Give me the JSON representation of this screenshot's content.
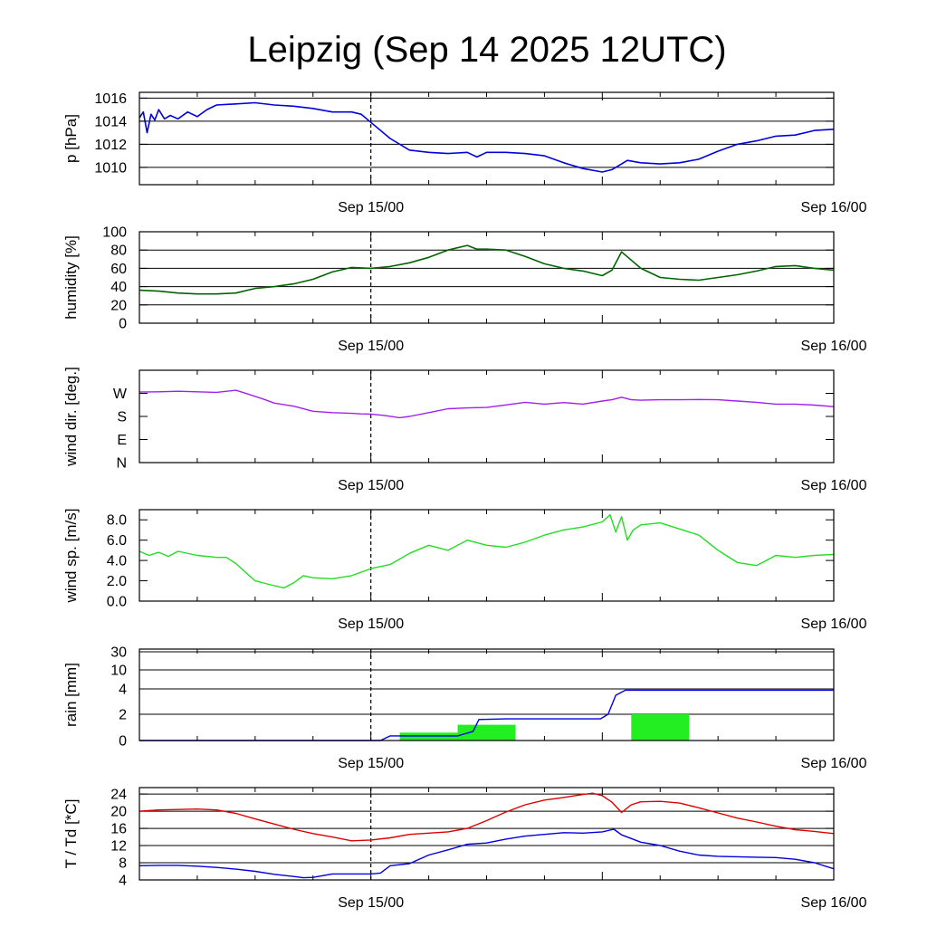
{
  "title": "Leipzig (Sep 14 2025 12UTC)",
  "colors": {
    "pressure": "#0000dd",
    "humidity": "#006400",
    "wind_dir": "#a020f0",
    "wind_speed": "#22dd22",
    "rain_bar": "#22ee22",
    "rain_cum": "#0000dd",
    "temperature": "#dd0000",
    "dewpoint": "#0000dd"
  },
  "chart_data": [
    {
      "id": "pressure",
      "type": "line",
      "ylabel": "p [hPa]",
      "x_ticks": [
        "Sep 15/00",
        "Sep 16/00"
      ],
      "x_range_hours": [
        0,
        36
      ],
      "ylim": [
        1008.5,
        1016.5
      ],
      "y_ticks": [
        "1010",
        "1012",
        "1014",
        "1016"
      ],
      "grid": true,
      "series": [
        {
          "name": "pressure",
          "x": [
            0,
            0.2,
            0.4,
            0.6,
            0.8,
            1,
            1.3,
            1.6,
            2,
            2.5,
            3,
            3.5,
            4,
            5,
            6,
            7,
            8,
            9,
            10,
            11,
            11.5,
            12,
            13,
            14,
            15,
            16,
            17,
            17.5,
            18,
            19,
            20,
            21,
            22,
            23,
            24,
            24.5,
            25,
            25.3,
            26,
            27,
            28,
            29,
            30,
            31,
            32,
            33,
            34,
            35,
            36
          ],
          "values": [
            1014.3,
            1014.8,
            1013.0,
            1014.6,
            1014.1,
            1015.0,
            1014.2,
            1014.5,
            1014.2,
            1014.8,
            1014.4,
            1015.0,
            1015.4,
            1015.5,
            1015.6,
            1015.4,
            1015.3,
            1015.1,
            1014.8,
            1014.8,
            1014.6,
            1013.9,
            1012.5,
            1011.5,
            1011.3,
            1011.2,
            1011.3,
            1010.9,
            1011.3,
            1011.3,
            1011.2,
            1011.0,
            1010.4,
            1009.9,
            1009.6,
            1009.8,
            1010.3,
            1010.6,
            1010.4,
            1010.3,
            1010.4,
            1010.7,
            1011.4,
            1012.0,
            1012.3,
            1012.7,
            1012.8,
            1013.2,
            1013.3
          ]
        }
      ]
    },
    {
      "id": "humidity",
      "type": "line",
      "ylabel": "humidity [%]",
      "x_ticks": [
        "Sep 15/00",
        "Sep 16/00"
      ],
      "x_range_hours": [
        0,
        36
      ],
      "ylim": [
        0,
        100
      ],
      "y_ticks": [
        "0",
        "20",
        "40",
        "60",
        "80",
        "100"
      ],
      "grid": true,
      "series": [
        {
          "name": "humidity",
          "x": [
            0,
            1,
            2,
            3,
            4,
            5,
            6,
            7,
            8,
            9,
            10,
            11,
            12,
            13,
            14,
            15,
            16,
            17,
            17.5,
            18,
            19,
            20,
            21,
            22,
            23,
            24,
            24.5,
            25,
            26,
            27,
            28,
            29,
            30,
            31,
            32,
            33,
            34,
            35,
            36
          ],
          "values": [
            36,
            35,
            33,
            32,
            32,
            33,
            38,
            40,
            43,
            48,
            56,
            61,
            60,
            62,
            66,
            72,
            80,
            85,
            81,
            81,
            80,
            73,
            65,
            60,
            57,
            52,
            58,
            78,
            60,
            50,
            48,
            47,
            50,
            53,
            57,
            62,
            63,
            60,
            58
          ]
        }
      ]
    },
    {
      "id": "wind_dir",
      "type": "line",
      "ylabel": "wind dir. [deg.]",
      "x_ticks": [
        "Sep 15/00",
        "Sep 16/00"
      ],
      "x_range_hours": [
        0,
        36
      ],
      "ylim": [
        0,
        360
      ],
      "y_ticks": [
        "N",
        "E",
        "S",
        "W"
      ],
      "grid": false,
      "series": [
        {
          "name": "wind direction",
          "x": [
            0,
            1,
            2,
            3,
            4,
            5,
            5.6,
            6.4,
            7,
            8,
            9,
            10,
            11,
            11.5,
            12,
            12.7,
            13.5,
            14,
            15,
            16,
            17,
            18,
            19,
            20,
            21,
            22,
            23,
            24,
            24.5,
            25,
            25.5,
            26,
            27,
            28,
            29,
            30,
            31,
            32,
            33,
            34,
            35,
            36
          ],
          "values": [
            275,
            276,
            278,
            276,
            274,
            282,
            268,
            248,
            232,
            220,
            200,
            195,
            192,
            190,
            189,
            184,
            175,
            180,
            195,
            210,
            213,
            215,
            225,
            235,
            228,
            234,
            228,
            240,
            245,
            255,
            245,
            243,
            245,
            245,
            246,
            245,
            240,
            235,
            228,
            228,
            224,
            218
          ]
        }
      ]
    },
    {
      "id": "wind_speed",
      "type": "line",
      "ylabel": "wind sp. [m/s]",
      "x_ticks": [
        "Sep 15/00",
        "Sep 16/00"
      ],
      "x_range_hours": [
        0,
        36
      ],
      "ylim": [
        0,
        9
      ],
      "y_ticks": [
        "0.0",
        "2.0",
        "4.0",
        "6.0",
        "8.0"
      ],
      "grid": false,
      "series": [
        {
          "name": "wind speed",
          "x": [
            0,
            0.5,
            1,
            1.5,
            2,
            3,
            4,
            4.5,
            5,
            6,
            6.8,
            7.5,
            8,
            8.5,
            9,
            10,
            11,
            12,
            13,
            14,
            15,
            16,
            17,
            18,
            19,
            20,
            21,
            22,
            23,
            24,
            24.4,
            24.7,
            25,
            25.3,
            25.6,
            26,
            27,
            28,
            29,
            30,
            31,
            32,
            33,
            34,
            35,
            36
          ],
          "values": [
            4.9,
            4.5,
            4.8,
            4.4,
            4.9,
            4.5,
            4.3,
            4.3,
            3.7,
            2.0,
            1.6,
            1.3,
            1.8,
            2.5,
            2.3,
            2.2,
            2.5,
            3.2,
            3.6,
            4.7,
            5.5,
            5.0,
            6.0,
            5.5,
            5.3,
            5.8,
            6.5,
            7.0,
            7.3,
            7.8,
            8.5,
            6.8,
            8.3,
            6.0,
            7.0,
            7.5,
            7.7,
            7.1,
            6.5,
            5.0,
            3.8,
            3.5,
            4.5,
            4.3,
            4.5,
            4.6
          ]
        }
      ]
    },
    {
      "id": "rain",
      "type": "bar",
      "ylabel": "rain [mm]",
      "x_ticks": [
        "Sep 15/00",
        "Sep 16/00"
      ],
      "x_range_hours": [
        0,
        36
      ],
      "ylim": [
        0,
        30
      ],
      "y_ticks": [
        "0",
        "2",
        "4",
        "10",
        "30"
      ],
      "grid": true,
      "bars": [
        {
          "x0": 13.5,
          "x1": 16.5,
          "value": 0.6
        },
        {
          "x0": 16.5,
          "x1": 19.5,
          "value": 1.2
        },
        {
          "x0": 25.5,
          "x1": 28.5,
          "value": 2.0
        }
      ],
      "series": [
        {
          "name": "cumulative rain",
          "x": [
            0,
            12.5,
            13,
            15.5,
            16.5,
            17.3,
            17.6,
            19,
            21,
            23,
            23.9,
            24.3,
            24.7,
            25.2,
            26,
            30,
            36
          ],
          "values": [
            0,
            0,
            0.35,
            0.35,
            0.35,
            0.7,
            1.6,
            1.65,
            1.65,
            1.65,
            1.65,
            2.0,
            3.5,
            3.9,
            3.9,
            3.9,
            3.9
          ]
        }
      ]
    },
    {
      "id": "temperature",
      "type": "line",
      "ylabel": "T / Td [*C]",
      "x_ticks": [
        "Sep 15/00",
        "Sep 16/00"
      ],
      "x_range_hours": [
        0,
        36
      ],
      "ylim": [
        4,
        25.5
      ],
      "y_ticks": [
        "4",
        "8",
        "12",
        "16",
        "20",
        "24"
      ],
      "grid": true,
      "series": [
        {
          "name": "T",
          "x": [
            0,
            1,
            2,
            3,
            4,
            5,
            6,
            7,
            8,
            9,
            10,
            11,
            12,
            13,
            14,
            15,
            16,
            17,
            18,
            19,
            20,
            21,
            22,
            23,
            23.5,
            24,
            24.5,
            25,
            25.5,
            26,
            27,
            28,
            29,
            30,
            31,
            32,
            33,
            34,
            35,
            36
          ],
          "values": [
            20.0,
            20.3,
            20.4,
            20.5,
            20.3,
            19.5,
            18.2,
            17.0,
            15.8,
            14.8,
            14.0,
            13.1,
            13.3,
            13.8,
            14.6,
            14.9,
            15.2,
            16.0,
            17.8,
            19.8,
            21.5,
            22.6,
            23.2,
            23.9,
            24.2,
            23.6,
            22.1,
            19.7,
            21.5,
            22.2,
            22.3,
            21.9,
            20.8,
            19.6,
            18.4,
            17.5,
            16.5,
            15.7,
            15.3,
            14.8
          ]
        },
        {
          "name": "Td",
          "x": [
            0,
            1,
            2,
            3,
            4,
            5,
            6,
            7,
            8,
            8.5,
            9,
            10,
            11,
            12,
            12.5,
            13,
            14,
            15,
            16,
            17,
            18,
            19,
            20,
            21,
            22,
            23,
            24,
            24.6,
            25,
            26,
            27,
            28,
            29,
            30,
            31,
            32,
            33,
            34,
            35,
            36
          ],
          "values": [
            7.3,
            7.4,
            7.4,
            7.2,
            6.9,
            6.5,
            6.0,
            5.3,
            4.8,
            4.5,
            4.6,
            5.4,
            5.4,
            5.4,
            5.6,
            7.3,
            7.8,
            9.8,
            11.0,
            12.3,
            12.6,
            13.5,
            14.2,
            14.6,
            15.0,
            14.9,
            15.2,
            15.8,
            14.5,
            12.8,
            12.0,
            10.7,
            9.8,
            9.5,
            9.4,
            9.3,
            9.2,
            8.8,
            8.0,
            6.6
          ]
        }
      ]
    }
  ]
}
